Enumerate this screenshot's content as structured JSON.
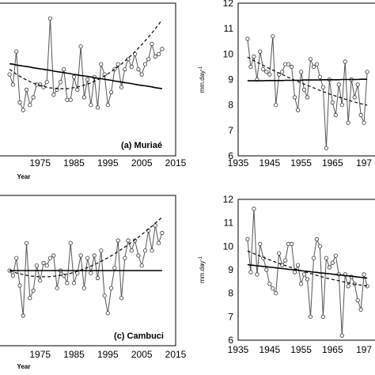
{
  "chart_data": [
    {
      "panel": "a",
      "type": "line",
      "label": "(a) Muriaé",
      "xlabel": "Year",
      "ylabel": "",
      "xticks": [
        "1975",
        "1985",
        "1995",
        "2005",
        "2015"
      ],
      "yticks": [],
      "x": [
        1966,
        1967,
        1968,
        1969,
        1970,
        1971,
        1972,
        1973,
        1974,
        1975,
        1976,
        1977,
        1978,
        1979,
        1980,
        1981,
        1982,
        1983,
        1984,
        1985,
        1986,
        1987,
        1988,
        1989,
        1990,
        1991,
        1992,
        1993,
        1994,
        1995,
        1996,
        1997,
        1998,
        1999,
        2000,
        2001,
        2002,
        2003,
        2004,
        2005,
        2006,
        2007,
        2008,
        2009,
        2010,
        2011
      ],
      "series": [
        {
          "style": "observed",
          "values": [
            9.2,
            8.8,
            10.1,
            8.1,
            7.8,
            8.6,
            8.0,
            8.3,
            8.8,
            8.8,
            8.7,
            8.9,
            11.4,
            8.4,
            8.6,
            8.9,
            9.4,
            8.2,
            8.2,
            9.1,
            8.6,
            10.3,
            8.3,
            9.0,
            8.0,
            9.1,
            7.9,
            9.6,
            9.2,
            8.0,
            8.5,
            9.4,
            9.6,
            8.7,
            9.4,
            9.8,
            9.5,
            10.0,
            9.4,
            9.2,
            9.6,
            9.8,
            10.4,
            9.9,
            10.0,
            10.2
          ]
        },
        {
          "style": "trend-linear",
          "values": [
            9.62,
            9.6,
            9.57,
            9.55,
            9.53,
            9.51,
            9.49,
            9.46,
            9.44,
            9.42,
            9.4,
            9.38,
            9.36,
            9.33,
            9.31,
            9.29,
            9.27,
            9.25,
            9.23,
            9.2,
            9.18,
            9.16,
            9.14,
            9.12,
            9.1,
            9.07,
            9.05,
            9.03,
            9.01,
            8.99,
            8.97,
            8.94,
            8.92,
            8.9,
            8.88,
            8.86,
            8.84,
            8.81,
            8.79,
            8.77,
            8.75,
            8.73,
            8.71,
            8.68,
            8.66,
            8.64
          ]
        },
        {
          "style": "trend-polynomial",
          "values": [
            9.4,
            9.3,
            9.21,
            9.13,
            9.05,
            8.98,
            8.92,
            8.86,
            8.81,
            8.77,
            8.73,
            8.7,
            8.67,
            8.66,
            8.64,
            8.64,
            8.64,
            8.64,
            8.66,
            8.68,
            8.7,
            8.74,
            8.78,
            8.82,
            8.87,
            8.93,
            8.99,
            9.06,
            9.14,
            9.22,
            9.31,
            9.4,
            9.5,
            9.61,
            9.72,
            9.84,
            9.96,
            10.09,
            10.23,
            10.37,
            10.52,
            10.67,
            10.83,
            11.0,
            11.17,
            11.35
          ]
        }
      ]
    },
    {
      "panel": "b",
      "type": "line",
      "label": "",
      "xlabel": "",
      "ylabel": "mm.day",
      "ylabel_sup": "-1",
      "xticks": [
        "1935",
        "1945",
        "1955",
        "1965",
        "197"
      ],
      "yticks": [
        "6",
        "7",
        "8",
        "9",
        "10",
        "11",
        "12"
      ],
      "ylim": [
        6,
        12
      ],
      "x": [
        1938,
        1939,
        1940,
        1941,
        1942,
        1943,
        1944,
        1945,
        1946,
        1947,
        1948,
        1949,
        1950,
        1951,
        1952,
        1953,
        1954,
        1955,
        1956,
        1957,
        1958,
        1959,
        1960,
        1961,
        1962,
        1963,
        1964,
        1965,
        1966,
        1967,
        1968,
        1969,
        1970,
        1971,
        1972,
        1973,
        1974,
        1975,
        1976
      ],
      "series": [
        {
          "style": "observed",
          "values": [
            10.6,
            9.5,
            9.9,
            9.0,
            10.1,
            9.4,
            9.3,
            9.2,
            10.7,
            8.0,
            9.2,
            9.3,
            9.6,
            9.6,
            9.5,
            8.3,
            7.8,
            9.3,
            8.6,
            8.3,
            9.8,
            9.5,
            9.6,
            9.1,
            8.7,
            6.3,
            9.0,
            8.1,
            7.6,
            8.8,
            8.0,
            9.7,
            7.3,
            9.0,
            8.3,
            8.8,
            7.6,
            7.3,
            9.3
          ]
        },
        {
          "style": "trend-linear",
          "values": [
            8.95,
            8.95,
            8.95,
            8.95,
            8.95,
            8.95,
            8.96,
            8.96,
            8.96,
            8.96,
            8.96,
            8.96,
            8.97,
            8.97,
            8.97,
            8.97,
            8.97,
            8.97,
            8.98,
            8.98,
            8.98,
            8.98,
            8.98,
            8.98,
            8.99,
            8.99,
            8.99,
            8.99,
            8.99,
            8.99,
            9.0,
            9.0,
            9.0,
            9.0,
            9.0,
            9.0,
            9.01,
            9.01,
            9.01
          ]
        },
        {
          "style": "trend-polynomial",
          "values": [
            9.88,
            9.81,
            9.74,
            9.68,
            9.62,
            9.56,
            9.49,
            9.43,
            9.37,
            9.31,
            9.25,
            9.2,
            9.14,
            9.08,
            9.03,
            8.97,
            8.92,
            8.87,
            8.82,
            8.77,
            8.72,
            8.67,
            8.62,
            8.57,
            8.52,
            8.48,
            8.43,
            8.39,
            8.35,
            8.31,
            8.27,
            8.23,
            8.19,
            8.15,
            8.12,
            8.08,
            8.05,
            8.02,
            7.99
          ]
        }
      ]
    },
    {
      "panel": "c",
      "type": "line",
      "label": "(c) Cambuci",
      "xlabel": "Year",
      "ylabel": "",
      "xticks": [
        "1975",
        "1985",
        "1995",
        "2005",
        "2015"
      ],
      "yticks": [],
      "x": [
        1966,
        1967,
        1968,
        1969,
        1970,
        1971,
        1972,
        1973,
        1974,
        1975,
        1976,
        1977,
        1978,
        1979,
        1980,
        1981,
        1982,
        1983,
        1984,
        1985,
        1986,
        1987,
        1988,
        1989,
        1990,
        1991,
        1992,
        1993,
        1994,
        1995,
        1996,
        1997,
        1998,
        1999,
        2000,
        2001,
        2002,
        2003,
        2004,
        2005,
        2006,
        2007,
        2008,
        2009,
        2010,
        2011
      ],
      "series": [
        {
          "style": "observed",
          "values": [
            9.0,
            8.8,
            9.5,
            8.4,
            7.2,
            10.1,
            7.9,
            8.2,
            9.2,
            8.6,
            9.3,
            9.2,
            9.5,
            9.6,
            8.3,
            9.0,
            8.8,
            8.5,
            10.1,
            8.5,
            8.9,
            9.6,
            8.3,
            9.5,
            8.9,
            9.6,
            8.7,
            9.8,
            8.0,
            7.3,
            8.3,
            9.1,
            10.2,
            7.9,
            9.5,
            10.2,
            9.8,
            10.2,
            9.6,
            9.2,
            9.8,
            10.6,
            9.8,
            10.8,
            10.1,
            10.5
          ]
        },
        {
          "style": "trend-linear",
          "values": [
            9.0,
            9.0,
            9.0,
            9.0,
            9.0,
            9.0,
            9.0,
            9.0,
            9.0,
            9.0,
            9.0,
            9.0,
            9.0,
            9.0,
            9.0,
            9.0,
            9.0,
            9.0,
            9.0,
            9.0,
            9.0,
            9.0,
            9.0,
            9.0,
            9.0,
            9.0,
            9.0,
            9.0,
            9.0,
            9.0,
            9.0,
            9.0,
            9.0,
            9.0,
            9.0,
            9.0,
            9.0,
            9.0,
            9.0,
            9.0,
            9.0,
            9.0,
            9.0,
            9.0,
            9.0,
            9.0
          ]
        },
        {
          "style": "trend-polynomial",
          "values": [
            9.0,
            8.95,
            8.91,
            8.87,
            8.84,
            8.81,
            8.79,
            8.77,
            8.76,
            8.75,
            8.75,
            8.75,
            8.76,
            8.77,
            8.79,
            8.81,
            8.83,
            8.86,
            8.89,
            8.93,
            8.97,
            9.02,
            9.07,
            9.12,
            9.18,
            9.24,
            9.3,
            9.37,
            9.44,
            9.51,
            9.59,
            9.67,
            9.76,
            9.85,
            9.94,
            10.03,
            10.13,
            10.23,
            10.33,
            10.44,
            10.55,
            10.66,
            10.77,
            10.89,
            11.01,
            11.13
          ]
        }
      ]
    },
    {
      "panel": "d",
      "type": "line",
      "label": "",
      "xlabel": "",
      "ylabel": "mm.day",
      "ylabel_sup": "-1",
      "xticks": [
        "1935",
        "1945",
        "1955",
        "1965",
        "197"
      ],
      "yticks": [
        "6",
        "7",
        "8",
        "9",
        "10",
        "11",
        "12"
      ],
      "ylim": [
        6,
        12
      ],
      "x": [
        1938,
        1939,
        1940,
        1941,
        1942,
        1943,
        1944,
        1945,
        1946,
        1947,
        1948,
        1949,
        1950,
        1951,
        1952,
        1953,
        1954,
        1955,
        1956,
        1957,
        1958,
        1959,
        1960,
        1961,
        1962,
        1963,
        1964,
        1965,
        1966,
        1967,
        1968,
        1969,
        1970,
        1971,
        1972,
        1973,
        1974,
        1975,
        1976
      ],
      "series": [
        {
          "style": "observed",
          "values": [
            10.3,
            8.9,
            11.6,
            8.8,
            10.1,
            9.5,
            9.0,
            8.4,
            8.2,
            8.0,
            9.7,
            9.2,
            9.4,
            10.1,
            10.1,
            8.9,
            9.2,
            8.4,
            8.8,
            8.6,
            7.0,
            9.5,
            10.3,
            10.0,
            7.0,
            9.5,
            9.1,
            9.3,
            9.6,
            8.8,
            6.2,
            8.8,
            8.3,
            8.7,
            8.4,
            7.7,
            7.3,
            8.8,
            8.3
          ]
        },
        {
          "style": "trend-linear",
          "values": [
            9.22,
            9.2,
            9.19,
            9.17,
            9.16,
            9.14,
            9.13,
            9.11,
            9.1,
            9.08,
            9.07,
            9.05,
            9.04,
            9.02,
            9.01,
            8.99,
            8.98,
            8.96,
            8.95,
            8.93,
            8.92,
            8.9,
            8.89,
            8.87,
            8.86,
            8.84,
            8.83,
            8.81,
            8.8,
            8.78,
            8.77,
            8.75,
            8.74,
            8.72,
            8.71,
            8.69,
            8.68,
            8.66,
            8.65
          ]
        },
        {
          "style": "trend-polynomial",
          "values": [
            9.8,
            9.74,
            9.69,
            9.63,
            9.58,
            9.53,
            9.47,
            9.42,
            9.37,
            9.32,
            9.27,
            9.23,
            9.18,
            9.13,
            9.09,
            9.04,
            9.0,
            8.96,
            8.92,
            8.88,
            8.84,
            8.8,
            8.76,
            8.72,
            8.69,
            8.65,
            8.62,
            8.59,
            8.56,
            8.53,
            8.5,
            8.47,
            8.44,
            8.42,
            8.39,
            8.37,
            8.35,
            8.33,
            8.31
          ]
        }
      ]
    }
  ]
}
